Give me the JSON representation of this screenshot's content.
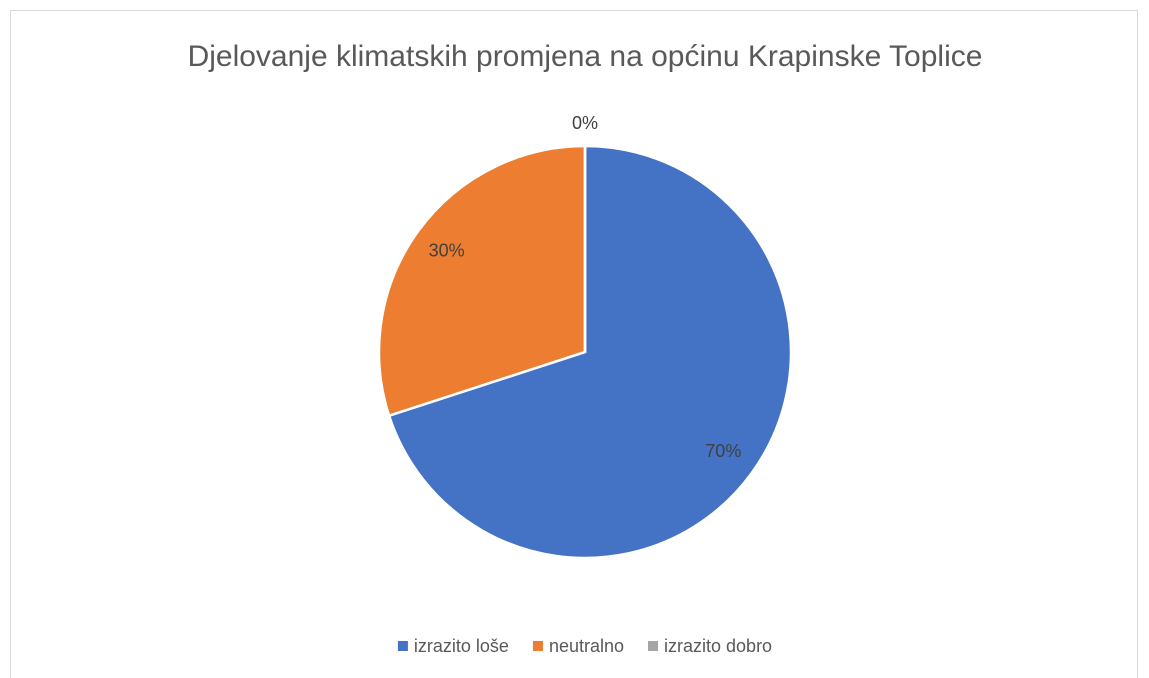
{
  "chart_data": {
    "type": "pie",
    "title": "Djelovanje klimatskih promjena na općinu Krapinske Toplice",
    "categories": [
      "izrazito loše",
      "neutralno",
      "izrazito dobro"
    ],
    "values": [
      70,
      30,
      0
    ],
    "value_labels": [
      "70%",
      "30%",
      "0%"
    ],
    "colors": [
      "#4472c4",
      "#ed7d31",
      "#a5a5a5"
    ],
    "legend": "bottom"
  }
}
